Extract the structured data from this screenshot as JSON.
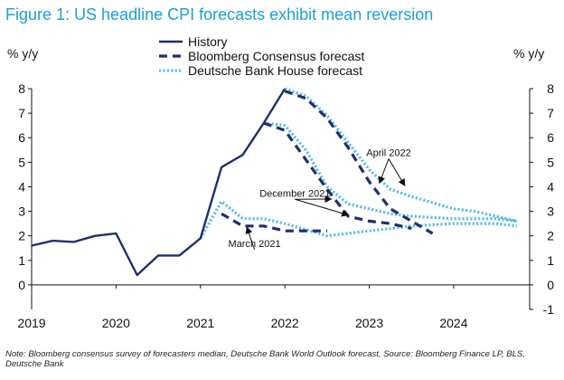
{
  "title": "Figure 1: US headline CPI forecasts exhibit mean reversion",
  "footnote": "Note: Bloomberg consensus survey of forecasters median, Deutsche Bank World Outlook forecast, Source: Bloomberg Finance LP, BLS, Deutsche Bank",
  "chart_data": {
    "type": "line",
    "title": "Figure 1: US headline CPI forecasts exhibit mean reversion",
    "ylabel_left": "% y/y",
    "ylabel_right": "% y/y",
    "ylim": [
      -1,
      8
    ],
    "yticks_left": [
      0,
      1,
      2,
      3,
      4,
      5,
      6,
      7,
      8
    ],
    "yticks_right": [
      -1,
      0,
      1,
      2,
      3,
      4,
      5,
      6,
      7,
      8
    ],
    "xlim": [
      2019,
      2024.9
    ],
    "xticks": [
      2019,
      2020,
      2021,
      2022,
      2023,
      2024
    ],
    "legend_position": "top-center",
    "colors": {
      "history": "#1f2f6e",
      "bloomberg": "#1f2f6e",
      "deutsche": "#5bbde6"
    },
    "series": [
      {
        "name": "History",
        "key": "history",
        "style": "solid",
        "points": [
          [
            2019.0,
            1.6
          ],
          [
            2019.25,
            1.8
          ],
          [
            2019.5,
            1.75
          ],
          [
            2019.75,
            2.0
          ],
          [
            2020.0,
            2.1
          ],
          [
            2020.25,
            0.4
          ],
          [
            2020.5,
            1.2
          ],
          [
            2020.75,
            1.2
          ],
          [
            2021.0,
            1.9
          ],
          [
            2021.25,
            4.8
          ],
          [
            2021.5,
            5.3
          ],
          [
            2021.75,
            6.6
          ],
          [
            2022.0,
            8.0
          ]
        ]
      },
      {
        "name": "Bloomberg Consensus forecast",
        "key": "bloomberg",
        "style": "dashed",
        "points": [
          [
            2021.25,
            2.9
          ],
          [
            2021.5,
            2.4
          ],
          [
            2021.75,
            2.4
          ],
          [
            2022.0,
            2.2
          ],
          [
            2022.5,
            2.2
          ]
        ]
      },
      {
        "name": "Bloomberg Consensus forecast",
        "key": "bloomberg",
        "style": "dashed",
        "points": [
          [
            2021.75,
            6.6
          ],
          [
            2022.0,
            6.3
          ],
          [
            2022.25,
            5.1
          ],
          [
            2022.5,
            3.9
          ],
          [
            2022.75,
            2.8
          ],
          [
            2023.0,
            2.6
          ],
          [
            2023.25,
            2.5
          ],
          [
            2023.5,
            2.3
          ]
        ]
      },
      {
        "name": "Bloomberg Consensus forecast",
        "key": "bloomberg",
        "style": "dashed",
        "points": [
          [
            2022.0,
            7.9
          ],
          [
            2022.25,
            7.6
          ],
          [
            2022.5,
            6.8
          ],
          [
            2022.75,
            5.6
          ],
          [
            2023.0,
            4.2
          ],
          [
            2023.25,
            3.1
          ],
          [
            2023.5,
            2.6
          ],
          [
            2023.75,
            2.1
          ]
        ]
      },
      {
        "name": "Deutsche Bank House forecast",
        "key": "deutsche",
        "style": "dotted",
        "points": [
          [
            2021.0,
            1.9
          ],
          [
            2021.25,
            3.4
          ],
          [
            2021.5,
            2.7
          ],
          [
            2021.75,
            2.7
          ],
          [
            2022.0,
            2.5
          ],
          [
            2022.5,
            2.0
          ],
          [
            2022.75,
            2.1
          ],
          [
            2023.0,
            2.2
          ],
          [
            2023.5,
            2.4
          ],
          [
            2024.0,
            2.5
          ],
          [
            2024.5,
            2.5
          ],
          [
            2024.75,
            2.4
          ]
        ]
      },
      {
        "name": "Deutsche Bank House forecast",
        "key": "deutsche",
        "style": "dotted",
        "points": [
          [
            2021.75,
            6.6
          ],
          [
            2022.0,
            6.5
          ],
          [
            2022.25,
            5.5
          ],
          [
            2022.5,
            4.0
          ],
          [
            2022.75,
            3.3
          ],
          [
            2023.0,
            3.1
          ],
          [
            2023.25,
            2.9
          ],
          [
            2023.5,
            2.8
          ],
          [
            2024.0,
            2.7
          ],
          [
            2024.5,
            2.7
          ],
          [
            2024.75,
            2.6
          ]
        ]
      },
      {
        "name": "Deutsche Bank House forecast",
        "key": "deutsche",
        "style": "dotted",
        "points": [
          [
            2022.0,
            8.0
          ],
          [
            2022.25,
            7.7
          ],
          [
            2022.5,
            6.9
          ],
          [
            2022.75,
            5.8
          ],
          [
            2023.0,
            4.7
          ],
          [
            2023.25,
            3.9
          ],
          [
            2023.5,
            3.6
          ],
          [
            2024.0,
            3.1
          ],
          [
            2024.25,
            3.0
          ],
          [
            2024.75,
            2.6
          ]
        ]
      }
    ],
    "legend": [
      {
        "label": "History",
        "key": "history",
        "style": "solid"
      },
      {
        "label": "Bloomberg Consensus forecast",
        "key": "bloomberg",
        "style": "dashed"
      },
      {
        "label": "Deutsche Bank House forecast",
        "key": "deutsche",
        "style": "dotted"
      }
    ],
    "annotations": [
      {
        "text": "April 2022",
        "text_at": [
          2023.23,
          5.25
        ],
        "arrows_to": [
          [
            2023.12,
            4.15
          ],
          [
            2023.42,
            4.05
          ]
        ]
      },
      {
        "text": "December 2021",
        "text_at": [
          2022.12,
          3.6
        ],
        "arrows_to": [
          [
            2022.55,
            3.5
          ],
          [
            2022.75,
            2.85
          ]
        ]
      },
      {
        "text": "March 2021",
        "text_at": [
          2021.64,
          1.55
        ],
        "arrows_to": [
          [
            2021.55,
            2.35
          ]
        ]
      }
    ]
  }
}
